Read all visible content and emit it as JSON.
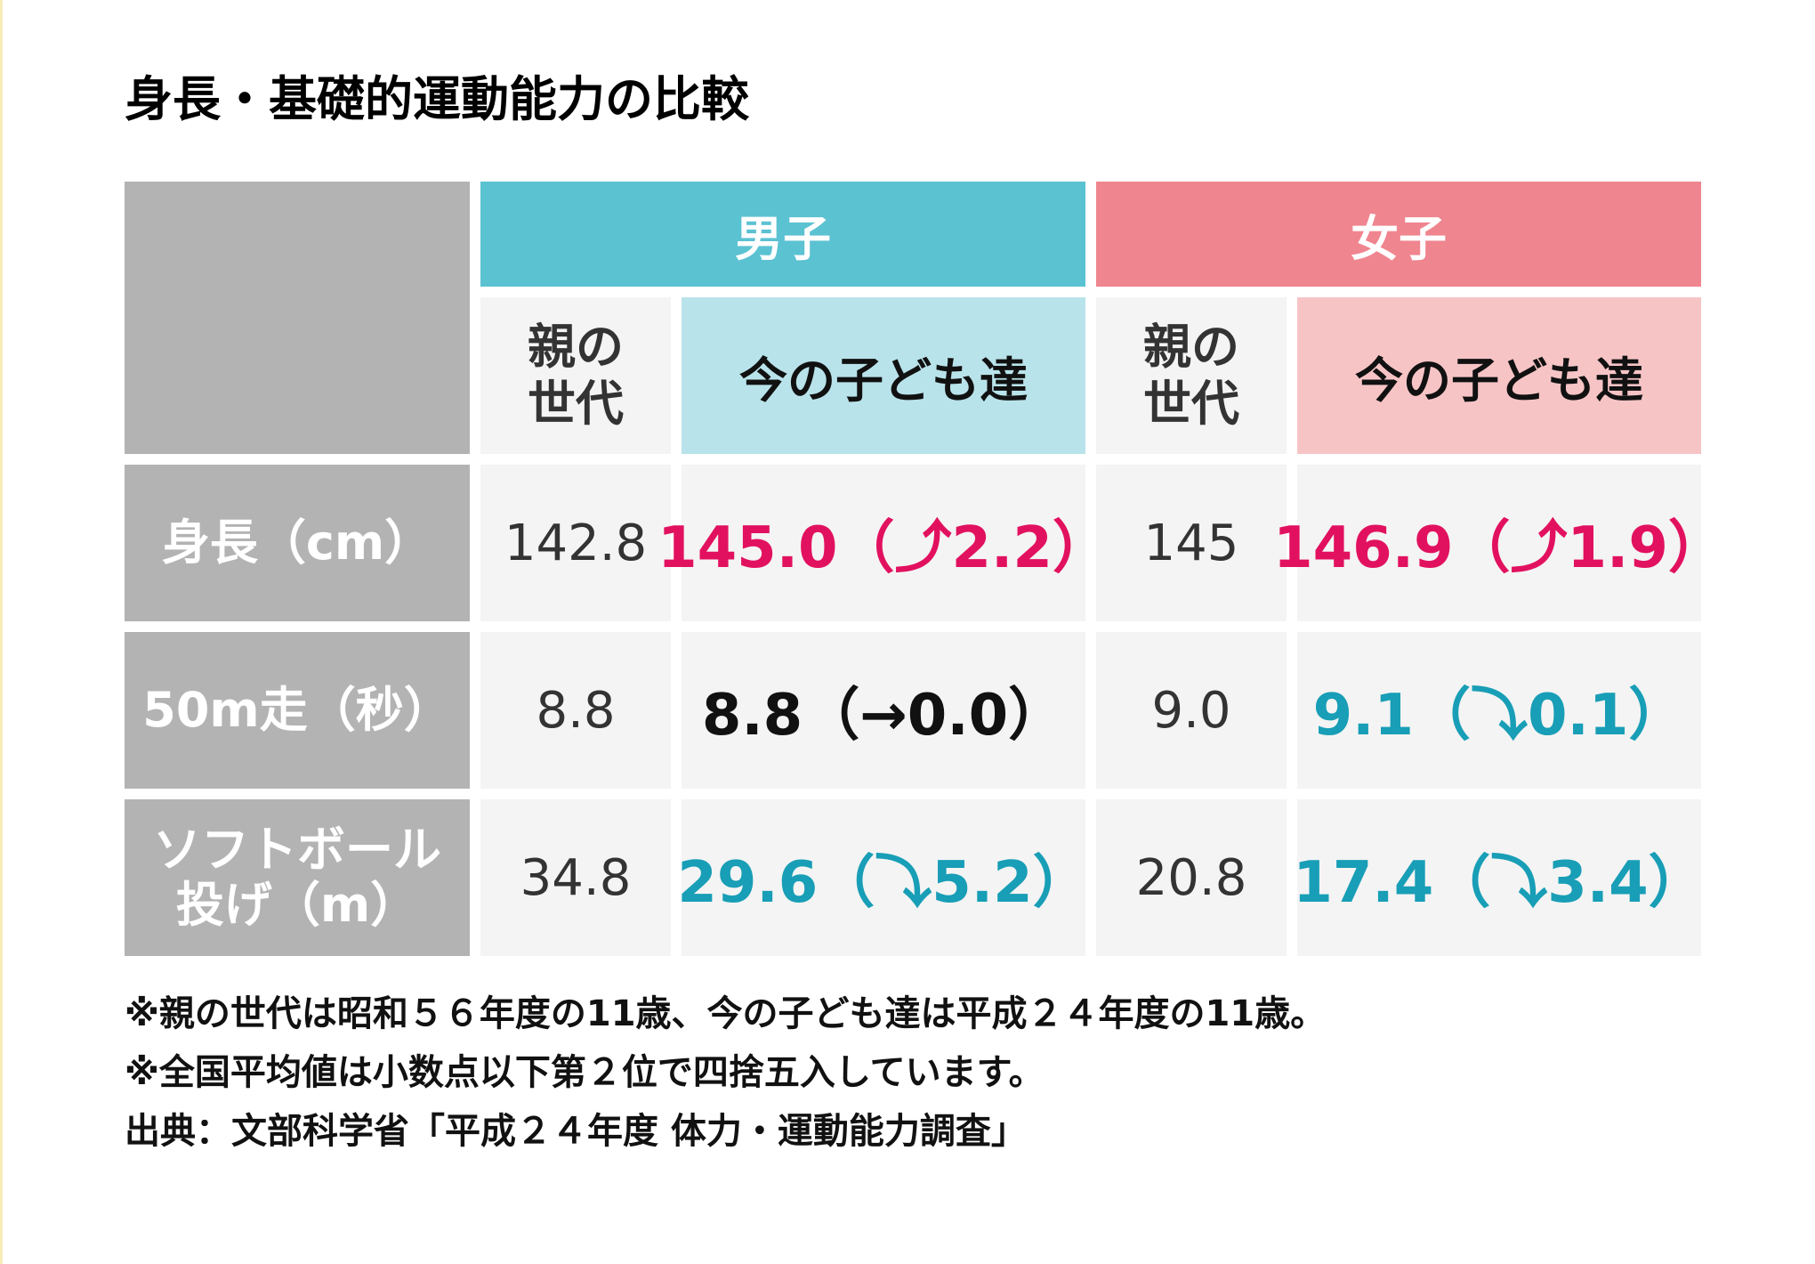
{
  "title": "身長・基礎的運動能力の比較",
  "colors": {
    "boys_header": "#5bc2d2",
    "girls_header": "#ef858f",
    "boys_kids_header": "#b9e3ea",
    "girls_kids_header": "#f7c4c6",
    "row_label_bg": "#b3b3b3",
    "cell_bg": "#f4f4f4",
    "increase": "#e2115f",
    "decrease": "#189eb6",
    "no_change": "#111111"
  },
  "chart_data": {
    "type": "table",
    "groups": [
      "男子",
      "女子"
    ],
    "subheaders": {
      "parent": "親の世代",
      "kids": "今の子ども達"
    },
    "rows": [
      {
        "label": "身長（cm）",
        "boys": {
          "parent": "142.8",
          "kids": "145.0（⤴2.2）",
          "trend": "up"
        },
        "girls": {
          "parent": "145",
          "kids": "146.9（⤴1.9）",
          "trend": "up"
        }
      },
      {
        "label": "50m走（秒）",
        "boys": {
          "parent": "8.8",
          "kids": "8.8（→0.0）",
          "trend": "same"
        },
        "girls": {
          "parent": "9.0",
          "kids": "9.1（⤵0.1）",
          "trend": "down"
        }
      },
      {
        "label": "ソフトボール投げ（m）",
        "boys": {
          "parent": "34.8",
          "kids": "29.6（⤵5.2）",
          "trend": "down"
        },
        "girls": {
          "parent": "20.8",
          "kids": "17.4（⤵3.4）",
          "trend": "down"
        }
      }
    ]
  },
  "notes": [
    "※親の世代は昭和５６年度の11歳、今の子ども達は平成２４年度の11歳。",
    "※全国平均値は小数点以下第２位で四捨五入しています。",
    "出典：文部科学省「平成２４年度 体力・運動能力調査」"
  ]
}
